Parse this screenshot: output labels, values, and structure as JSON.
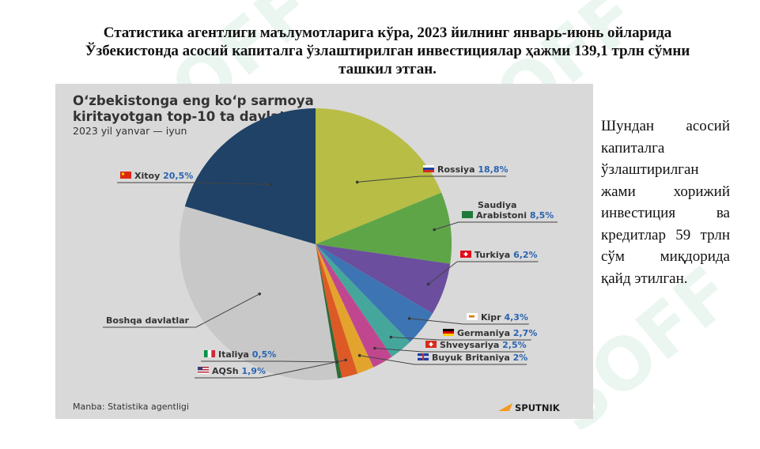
{
  "slide": {
    "heading": "Статистика агентлиги маълумотларига кўра, 2023 йилнинг январь-июнь ойларида Ўзбекистонда асосий капиталга ўзлаштирилган инвестициялар ҳажми 139,1 трлн сўмни ташкил этган.",
    "side_text": "Шундан асосий капиталга ўзлаштирилган жами хорижий инвестиция ва кредитлар 59 трлн сўм миқдорида қайд этилган.",
    "watermark": "SOFF"
  },
  "chart_data": {
    "type": "pie",
    "title": "O‘zbekistonga eng ko‘p sarmoya kiritayotgan top-10 ta davlat",
    "subtitle": "2023 yil yanvar — iyun",
    "source": "Manba: Statistika agentligi",
    "brand": "SPUTNIK",
    "slices": [
      {
        "label": "Rossiya",
        "value": 18.8,
        "value_label": "18,8%",
        "color": "#b8bd45",
        "flag": "ru"
      },
      {
        "label": "Saudiya Arabistoni",
        "value": 8.5,
        "value_label": "8,5%",
        "color": "#5ea548",
        "flag": "sa"
      },
      {
        "label": "Turkiya",
        "value": 6.2,
        "value_label": "6,2%",
        "color": "#6b4e9e",
        "flag": "tr"
      },
      {
        "label": "Kipr",
        "value": 4.3,
        "value_label": "4,3%",
        "color": "#3d74b3",
        "flag": "cy"
      },
      {
        "label": "Germaniya",
        "value": 2.7,
        "value_label": "2,7%",
        "color": "#45a79c",
        "flag": "de"
      },
      {
        "label": "Shveysariya",
        "value": 2.5,
        "value_label": "2,5%",
        "color": "#c0478f",
        "flag": "ch"
      },
      {
        "label": "Buyuk Britaniya",
        "value": 2,
        "value_label": "2%",
        "color": "#e3a42d",
        "flag": "gb"
      },
      {
        "label": "AQSh",
        "value": 1.9,
        "value_label": "1,9%",
        "color": "#dd5a26",
        "flag": "us"
      },
      {
        "label": "Italiya",
        "value": 0.5,
        "value_label": "0,5%",
        "color": "#2f6b38",
        "flag": "it"
      },
      {
        "label": "Boshqa davlatlar",
        "value": 32.1,
        "value_label": "",
        "color": "#c8c8c8",
        "flag": ""
      },
      {
        "label": "Xitoy",
        "value": 20.5,
        "value_label": "20,5%",
        "color": "#1f4266",
        "flag": "cn"
      }
    ]
  }
}
